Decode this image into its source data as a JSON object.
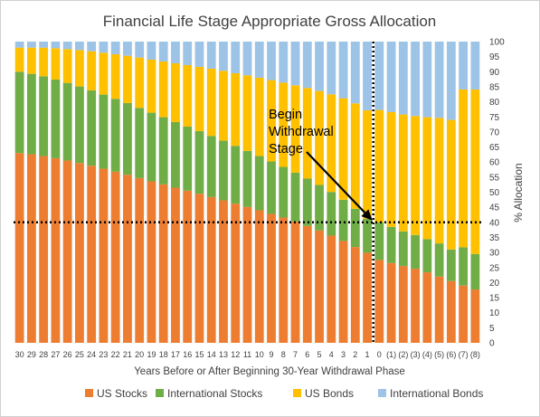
{
  "chart_data": {
    "type": "bar",
    "stacked": true,
    "title": "Financial Life Stage Appropriate Gross Allocation",
    "xlabel": "Years Before or After Beginning 30-Year Withdrawal Phase",
    "ylabel": "% Allocation",
    "ylim": [
      0,
      100
    ],
    "yticks": [
      0,
      5,
      10,
      15,
      20,
      25,
      30,
      35,
      40,
      45,
      50,
      55,
      60,
      65,
      70,
      75,
      80,
      85,
      90,
      95,
      100
    ],
    "y_axis_side": "right",
    "grid": false,
    "legend_position": "bottom",
    "categories": [
      "30",
      "29",
      "28",
      "27",
      "26",
      "25",
      "24",
      "23",
      "22",
      "21",
      "20",
      "19",
      "18",
      "17",
      "16",
      "15",
      "14",
      "13",
      "12",
      "11",
      "10",
      "9",
      "8",
      "7",
      "6",
      "5",
      "4",
      "3",
      "2",
      "1",
      "0",
      "(1)",
      "(2)",
      "(3)",
      "(4)",
      "(5)",
      "(6)",
      "(7)",
      "(8)"
    ],
    "series": [
      {
        "name": "US Stocks",
        "color": "#ED7D31",
        "values": [
          63,
          62.6,
          62,
          61.3,
          60.5,
          59.7,
          58.8,
          57.8,
          56.8,
          55.8,
          54.7,
          53.6,
          52.6,
          51.5,
          50.5,
          49.5,
          48.4,
          47.3,
          46.2,
          45.1,
          44,
          42.8,
          41.6,
          40.3,
          38.8,
          37.3,
          35.6,
          33.8,
          31.8,
          29.9,
          27.5,
          26.5,
          25.5,
          24.6,
          23.4,
          22,
          20.5,
          19,
          17.7
        ]
      },
      {
        "name": "International Stocks",
        "color": "#70AD47",
        "values": [
          27,
          26.7,
          26.5,
          26.1,
          25.8,
          25.4,
          25,
          24.6,
          24.2,
          23.8,
          23.3,
          22.8,
          22.3,
          21.8,
          21.3,
          20.8,
          20.3,
          19.8,
          19.2,
          18.6,
          18,
          17.4,
          16.8,
          16.2,
          15.7,
          15.1,
          14.5,
          13.7,
          12.7,
          11.3,
          12.5,
          12,
          11.5,
          11.2,
          11,
          11,
          10.5,
          12.7,
          11.8
        ]
      },
      {
        "name": "US Bonds",
        "color": "#FFC000",
        "values": [
          8,
          8.7,
          9.5,
          10.4,
          11.2,
          12.1,
          13,
          13.9,
          14.8,
          15.7,
          16.7,
          17.6,
          18.5,
          19.5,
          20.4,
          21.3,
          22.3,
          23.2,
          24.1,
          25.1,
          26,
          27,
          28,
          29,
          30.1,
          31.2,
          32.4,
          33.7,
          35,
          36,
          37.3,
          38.1,
          38.8,
          39.5,
          40.5,
          41.7,
          43,
          52.4,
          54.6
        ]
      },
      {
        "name": "International Bonds",
        "color": "#9DC3E6",
        "values": [
          2,
          2,
          2,
          2.2,
          2.5,
          2.8,
          3.2,
          3.7,
          4.2,
          4.7,
          5.3,
          6,
          6.6,
          7.2,
          7.8,
          8.4,
          9,
          9.7,
          10.5,
          11.2,
          12,
          12.8,
          13.6,
          14.5,
          15.4,
          16.4,
          17.5,
          18.8,
          20.5,
          22.8,
          22.7,
          23.4,
          24.2,
          24.7,
          25.1,
          25.3,
          26,
          15.9,
          15.9
        ]
      }
    ],
    "annotations": [
      {
        "text_lines": [
          "Begin",
          "Withdrawal",
          "Stage"
        ],
        "arrow_to_category": "0",
        "arrow_to_value": 40
      }
    ],
    "reference_lines": [
      {
        "orientation": "horizontal",
        "value": 40,
        "style": "dotted",
        "color": "#000000"
      },
      {
        "orientation": "vertical",
        "at_category": "0",
        "side": "left",
        "style": "dotted",
        "color": "#000000"
      }
    ]
  }
}
